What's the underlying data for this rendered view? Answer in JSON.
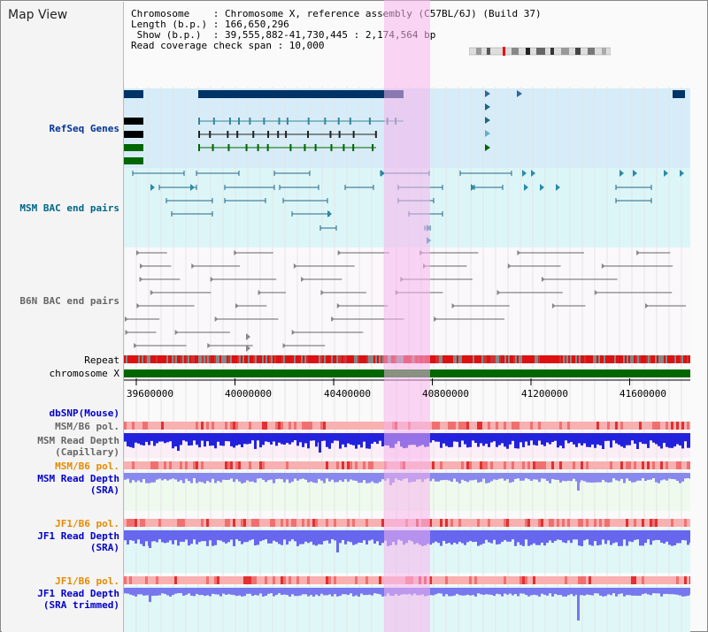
{
  "title": "Map View",
  "info": {
    "line1": "Chromosome    : Chromosome X, reference assembly (C57BL/6J) (Build 37)",
    "line2": "Length (b.p.) : 166,650,296",
    "line3": " Show (b.p.)  : 39,555,882-41,730,445 : 2,174,564 bp",
    "line4": "Read coverage check span : 10,000"
  },
  "tracks": {
    "refseq": {
      "label": "RefSeq Genes",
      "color": "#003399"
    },
    "msm_bac": {
      "label": "MSM BAC end pairs",
      "color": "#006688"
    },
    "b6n_bac": {
      "label": "B6N BAC end pairs",
      "color": "#666666"
    },
    "repeat": {
      "label": "Repeat"
    },
    "chrom": {
      "label": "chromosome X"
    },
    "dbsnp": {
      "label": "dbSNP(Mouse)",
      "color": "#0000cc"
    },
    "msm_b6_pol_1": {
      "label": "MSM/B6 pol.",
      "color": "#666666"
    },
    "msm_depth_cap": {
      "label": "MSM Read Depth",
      "label2": "(Capillary)",
      "color": "#666666"
    },
    "msm_b6_pol_2": {
      "label": "MSM/B6 pol.",
      "color": "#e68a00"
    },
    "msm_depth_sra": {
      "label": "MSM Read Depth",
      "label2": "(SRA)",
      "color": "#0000cc"
    },
    "jf1_b6_pol_1": {
      "label": "JF1/B6 pol.",
      "color": "#e68a00"
    },
    "jf1_depth_sra": {
      "label": "JF1 Read Depth",
      "label2": "(SRA)",
      "color": "#0000cc"
    },
    "jf1_b6_pol_2": {
      "label": "JF1/B6 pol.",
      "color": "#e68a00"
    },
    "jf1_depth_trim": {
      "label": "JF1 Read Depth",
      "label2": "(SRA trimmed)",
      "color": "#0000cc"
    }
  },
  "axis": {
    "ticks": [
      "39600000",
      "40000000",
      "40400000",
      "40800000",
      "41200000",
      "41600000"
    ]
  }
}
